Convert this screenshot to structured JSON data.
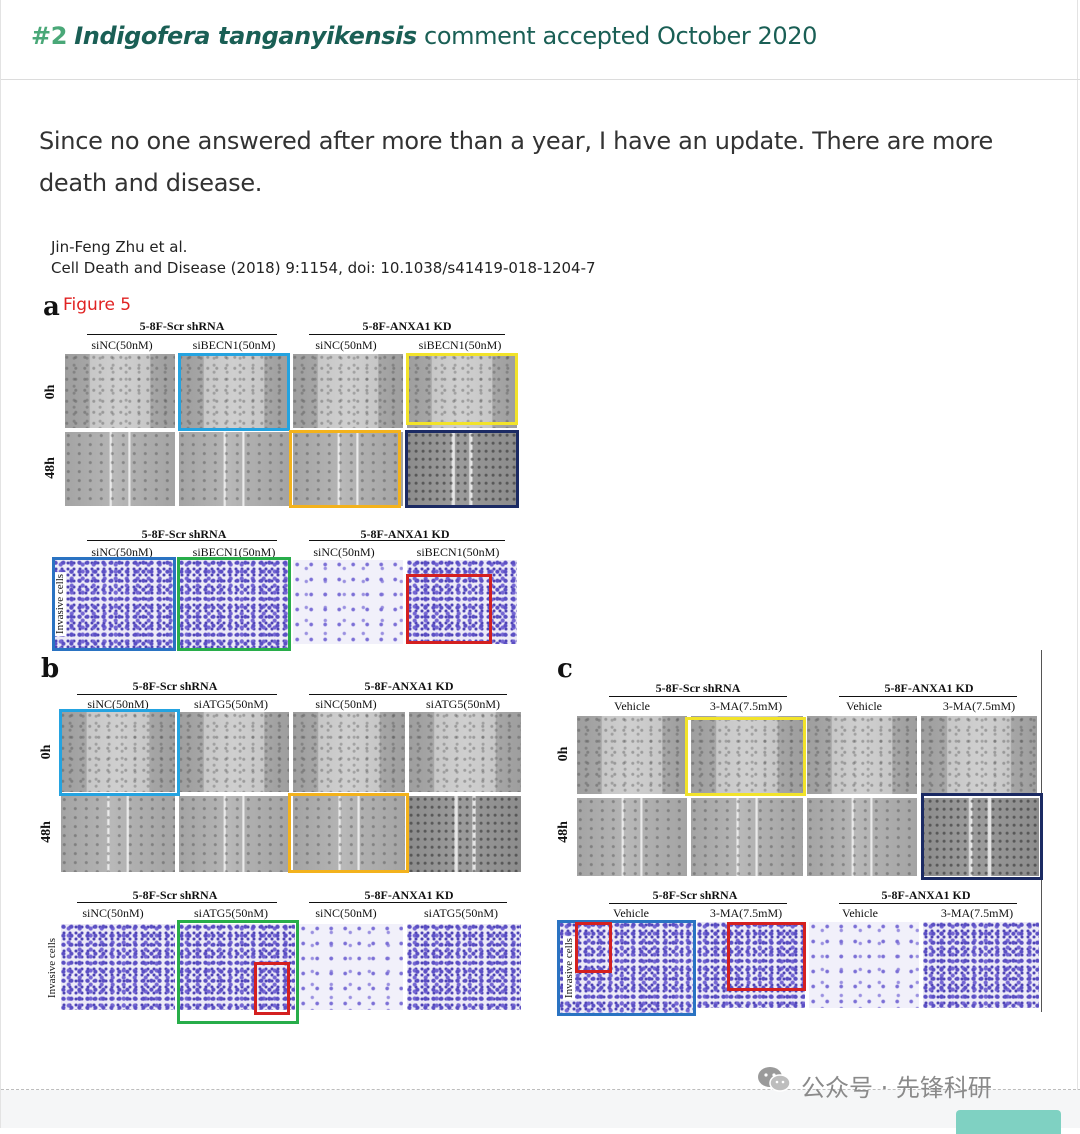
{
  "header": {
    "number": "#2",
    "species": "Indigofera tanganyikensis",
    "status": "comment accepted October 2020"
  },
  "comment": {
    "text": "Since no one answered after more than a year, I have an update. There are more death and disease."
  },
  "figure": {
    "citation_authors": "Jin-Feng Zhu et al.",
    "citation_ref": "Cell Death and Disease (2018) 9:1154, doi: 10.1038/s41419-018-1204-7",
    "figure_label": "Figure 5",
    "panel_a": {
      "letter": "a",
      "group1": "5-8F-Scr shRNA",
      "group2": "5-8F-ANXA1 KD",
      "conditions": [
        "siNC(50nM)",
        "siBECN1(50nM)",
        "siNC(50nM)",
        "siBECN1(50nM)"
      ],
      "rows": [
        "0h",
        "48h"
      ],
      "invasion_group1": "5-8F-Scr shRNA",
      "invasion_group2": "5-8F-ANXA1 KD",
      "invasion_conditions": [
        "siNC(50nM)",
        "siBECN1(50nM)",
        "siNC(50nM)",
        "siBECN1(50nM)"
      ],
      "invasion_row": "Invasive cells"
    },
    "panel_b": {
      "letter": "b",
      "group1": "5-8F-Scr shRNA",
      "group2": "5-8F-ANXA1 KD",
      "conditions": [
        "siNC(50nM)",
        "siATG5(50nM)",
        "siNC(50nM)",
        "siATG5(50nM)"
      ],
      "rows": [
        "0h",
        "48h"
      ],
      "invasion_group1": "5-8F-Scr shRNA",
      "invasion_group2": "5-8F-ANXA1 KD",
      "invasion_conditions": [
        "siNC(50nM)",
        "siATG5(50nM)",
        "siNC(50nM)",
        "siATG5(50nM)"
      ],
      "invasion_row": "Invasive cells"
    },
    "panel_c": {
      "letter": "c",
      "group1": "5-8F-Scr shRNA",
      "group2": "5-8F-ANXA1 KD",
      "conditions": [
        "Vehicle",
        "3-MA(7.5mM)",
        "Vehicle",
        "3-MA(7.5mM)"
      ],
      "rows": [
        "0h",
        "48h"
      ],
      "invasion_group1": "5-8F-Scr shRNA",
      "invasion_group2": "5-8F-ANXA1 KD",
      "invasion_conditions": [
        "Vehicle",
        "3-MA(7.5mM)",
        "Vehicle",
        "3-MA(7.5mM)"
      ],
      "invasion_row": "Invasive cells"
    }
  },
  "watermark": {
    "icon": "wechat-icon",
    "text": "公众号 · 先锋科研"
  },
  "colors": {
    "header_number": "#4aa878",
    "header_text": "#1a5f55",
    "highlight_blue": "#24a3e0",
    "highlight_yellow": "#f2e32a",
    "highlight_orange": "#f3b21c",
    "highlight_navy": "#1b2a63",
    "highlight_green": "#28ad4a",
    "highlight_red": "#d42020",
    "footer_button": "#7fd1c2"
  }
}
